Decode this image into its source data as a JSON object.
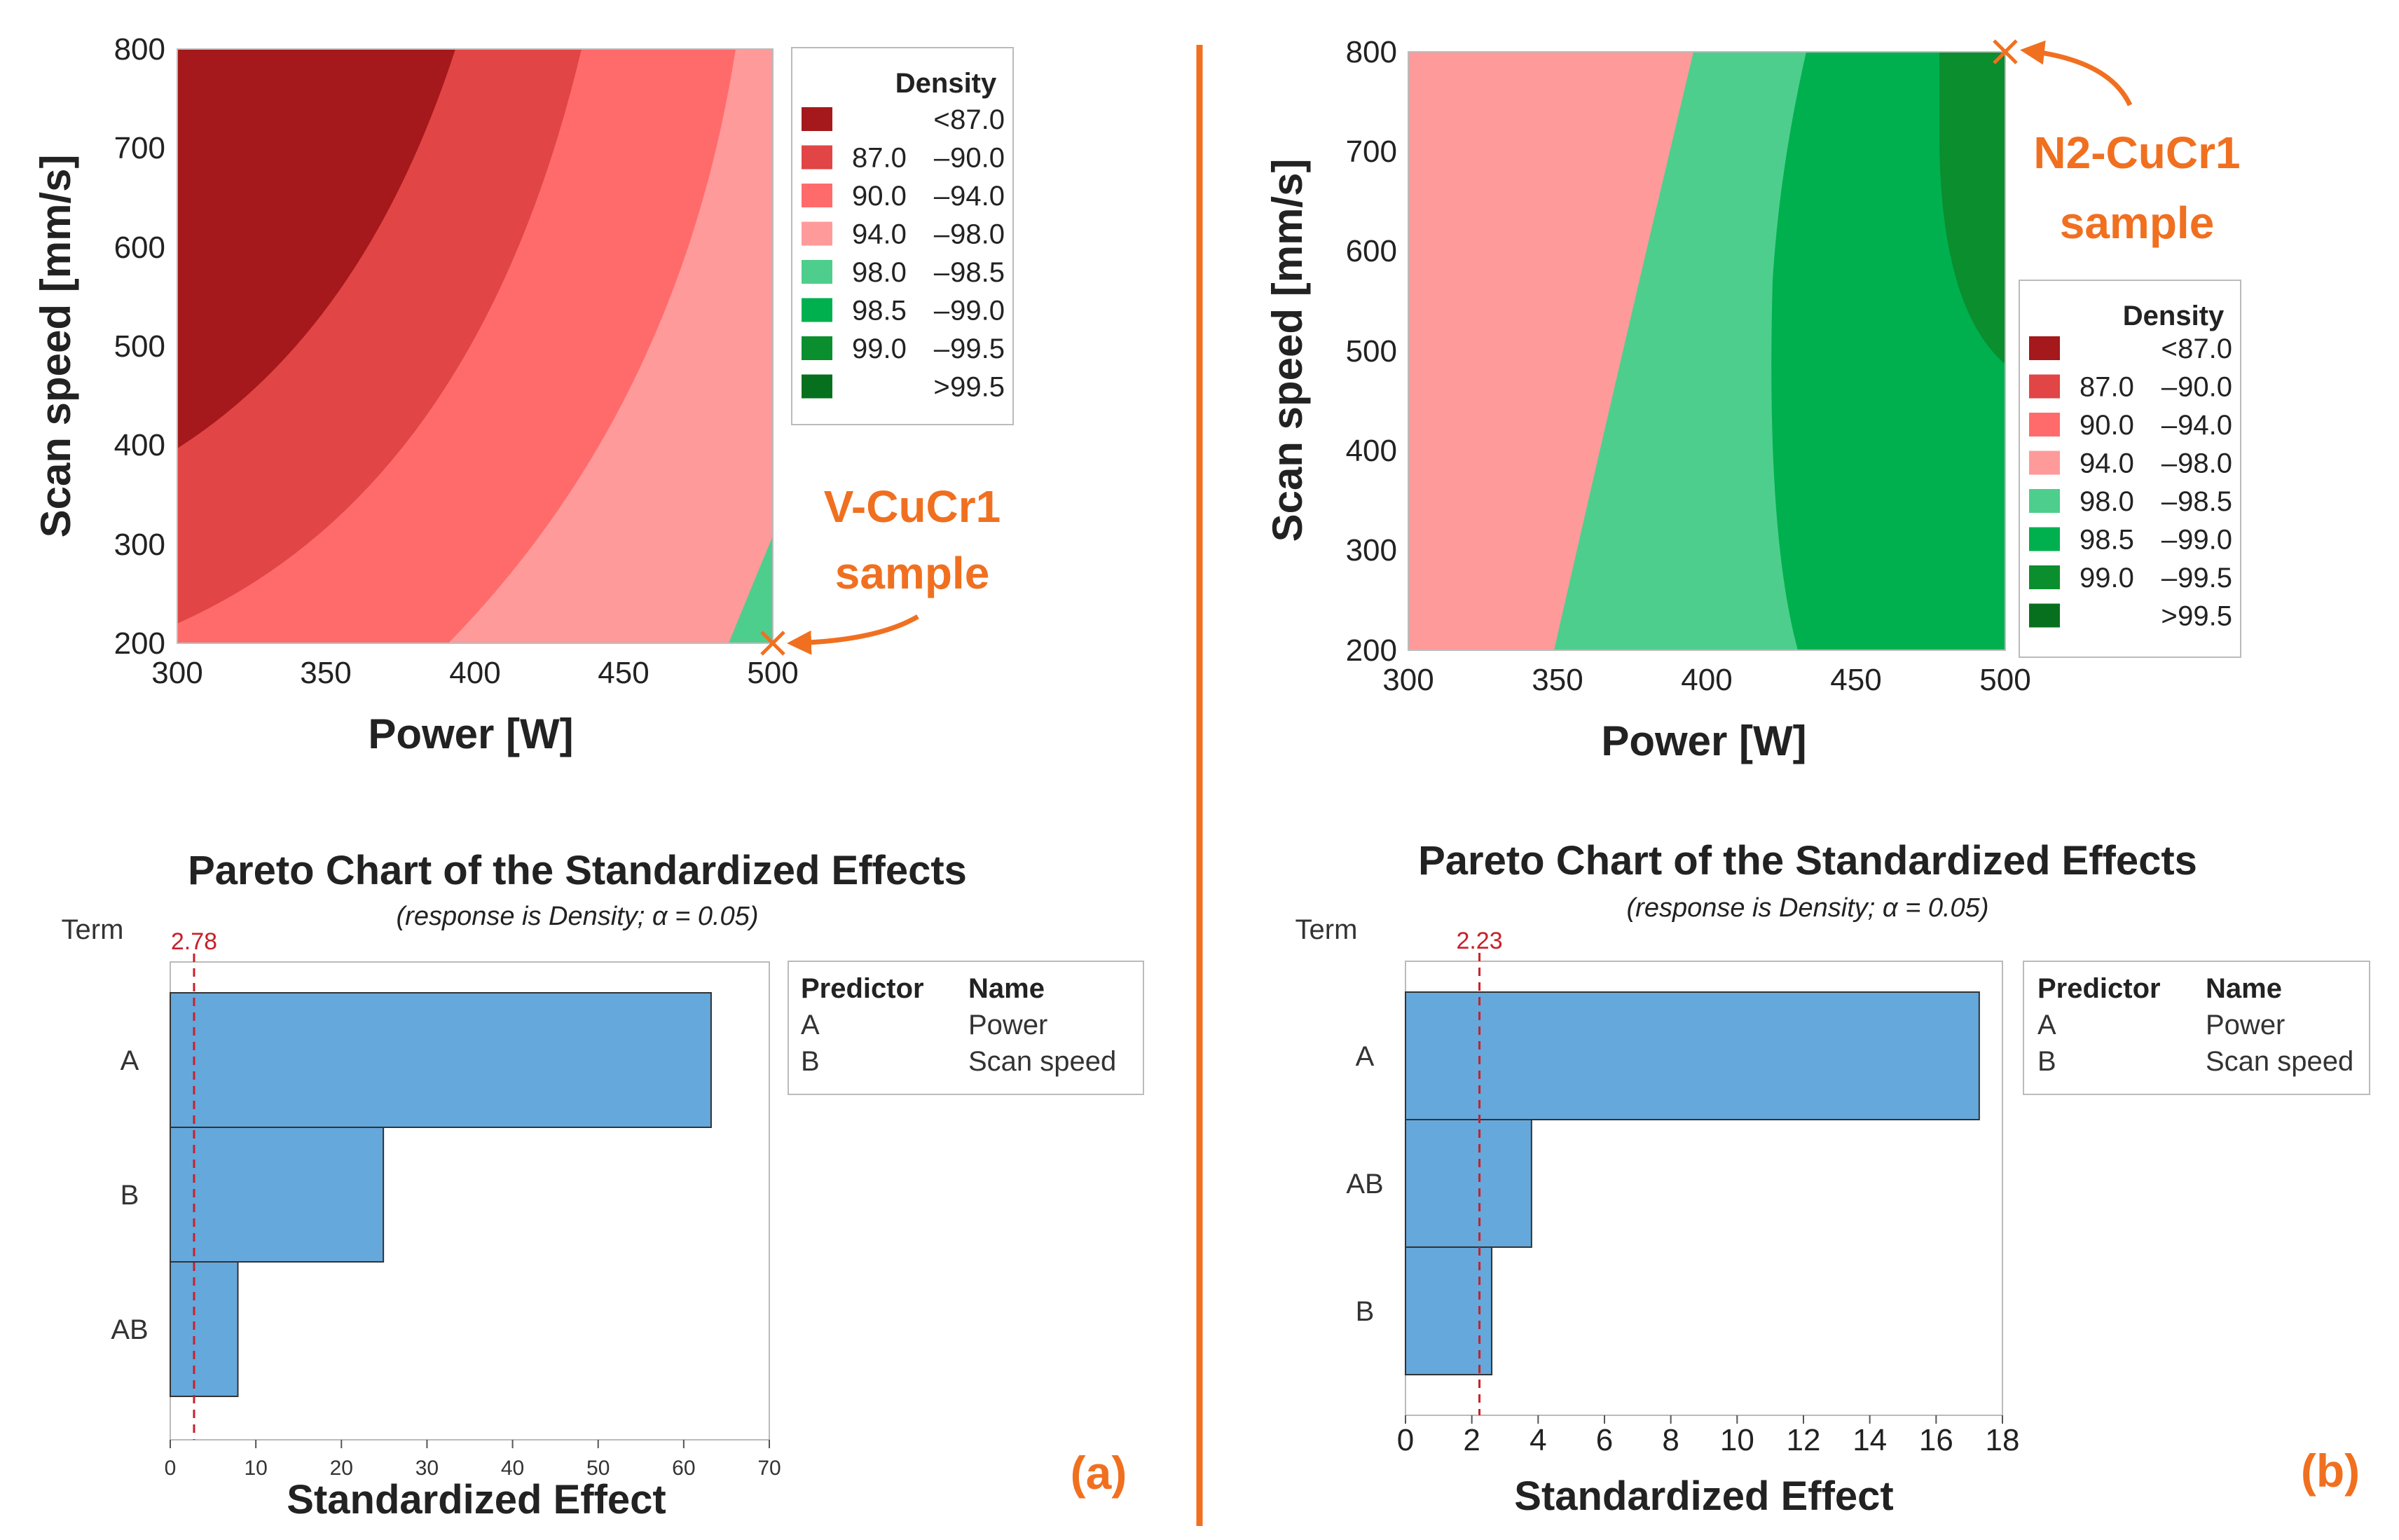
{
  "colors": {
    "lt87": "#A5181B",
    "r87_90": "#E14545",
    "r90_94": "#FF6B6B",
    "r94_98": "#FF9A9A",
    "r98_985": "#4ECE8C",
    "r985_99": "#00B04E",
    "r99_995": "#0B8E2E",
    "gt995": "#07701E",
    "bar": "#65A8DB",
    "annotation": "#F07020",
    "reference": "#C8202A"
  },
  "legend": {
    "title": "Density",
    "items": [
      {
        "sym": "<",
        "lo": "",
        "hi": "87.0",
        "color": "#A5181B"
      },
      {
        "sym": "",
        "lo": "87.0",
        "hi": "90.0",
        "color": "#E14545"
      },
      {
        "sym": "",
        "lo": "90.0",
        "hi": "94.0",
        "color": "#FF6B6B"
      },
      {
        "sym": "",
        "lo": "94.0",
        "hi": "98.0",
        "color": "#FF9A9A"
      },
      {
        "sym": "",
        "lo": "98.0",
        "hi": "98.5",
        "color": "#4ECE8C"
      },
      {
        "sym": "",
        "lo": "98.5",
        "hi": "99.0",
        "color": "#00B04E"
      },
      {
        "sym": "",
        "lo": "99.0",
        "hi": "99.5",
        "color": "#0B8E2E"
      },
      {
        "sym": ">",
        "lo": "",
        "hi": "99.5",
        "color": "#07701E"
      }
    ],
    "dash": "–"
  },
  "chart_data": [
    {
      "type": "contour",
      "panel": "a",
      "xlabel": "Power [W]",
      "ylabel": "Scan speed [mm/s]",
      "xlim": [
        300,
        500
      ],
      "ylim": [
        200,
        800
      ],
      "x_ticks": [
        "300",
        "350",
        "400",
        "450",
        "500"
      ],
      "y_ticks": [
        "200",
        "300",
        "400",
        "500",
        "600",
        "700",
        "800"
      ],
      "regions": [
        {
          "range": "< 87.0",
          "boundary_top_x_at_800": 390
        },
        {
          "range": "87.0 – 90.0",
          "boundary_top_x_at_800": 433
        },
        {
          "range": "90.0 – 94.0",
          "boundary_top_x_at_800": 481
        },
        {
          "range": "94.0 – 98.0",
          "boundary_top_x_at_800": 500
        },
        {
          "range": "98.0 – 98.5",
          "corner": "bottom-right"
        }
      ],
      "sample_point": {
        "power": 500,
        "speed": 200
      },
      "annotation": [
        "V-CuCr1",
        "sample"
      ]
    },
    {
      "type": "contour",
      "panel": "b",
      "xlabel": "Power [W]",
      "ylabel": "Scan speed [mm/s]",
      "xlim": [
        300,
        500
      ],
      "ylim": [
        200,
        800
      ],
      "x_ticks": [
        "300",
        "350",
        "400",
        "450",
        "500"
      ],
      "y_ticks": [
        "200",
        "300",
        "400",
        "500",
        "600",
        "700",
        "800"
      ],
      "regions": [
        {
          "range": "94.0 – 98.0",
          "boundary_x_at_200": 349,
          "boundary_x_at_800": 393
        },
        {
          "range": "98.0 – 98.5",
          "boundary_x_at_200": 433,
          "boundary_x_at_800": 430
        },
        {
          "range": "98.5 – 99.0",
          "boundary_x_at_800": 479
        },
        {
          "range": "99.0 – 99.5",
          "corner": "top-right"
        }
      ],
      "sample_point": {
        "power": 500,
        "speed": 800
      },
      "annotation": [
        "N2-CuCr1",
        "sample"
      ]
    },
    {
      "type": "bar",
      "orientation": "horizontal",
      "panel": "a",
      "title": "Pareto Chart of the Standardized Effects",
      "subtitle": "(response is Density; α = 0.05)",
      "term_label": "Term",
      "xlabel": "Standardized Effect",
      "categories": [
        "A",
        "B",
        "AB"
      ],
      "values": [
        63.2,
        24.9,
        7.9
      ],
      "xlim": [
        0,
        70
      ],
      "x_ticks": [
        "0",
        "10",
        "20",
        "30",
        "40",
        "50",
        "60",
        "70"
      ],
      "reference": {
        "value": 2.78,
        "label": "2.78"
      },
      "predictors": {
        "header": [
          "Predictor",
          "Name"
        ],
        "rows": [
          [
            "A",
            "Power"
          ],
          [
            "B",
            "Scan speed"
          ]
        ]
      },
      "panel_label": "(a)"
    },
    {
      "type": "bar",
      "orientation": "horizontal",
      "panel": "b",
      "title": "Pareto Chart of the Standardized Effects",
      "subtitle": "(response is Density; α = 0.05)",
      "term_label": "Term",
      "xlabel": "Standardized Effect",
      "categories": [
        "A",
        "AB",
        "B"
      ],
      "values": [
        17.3,
        3.8,
        2.6
      ],
      "xlim": [
        0,
        18
      ],
      "x_ticks": [
        "0",
        "2",
        "4",
        "6",
        "8",
        "10",
        "12",
        "14",
        "16",
        "18"
      ],
      "reference": {
        "value": 2.23,
        "label": "2.23"
      },
      "predictors": {
        "header": [
          "Predictor",
          "Name"
        ],
        "rows": [
          [
            "A",
            "Power"
          ],
          [
            "B",
            "Scan speed"
          ]
        ]
      },
      "panel_label": "(b)"
    }
  ]
}
